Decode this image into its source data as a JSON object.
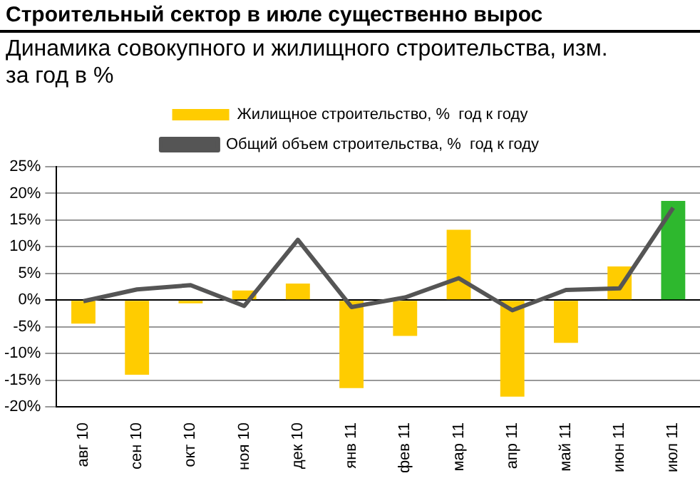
{
  "chart_data": {
    "type": "bar",
    "title": "Строительный сектор в июле существенно вырос",
    "subtitle": "Динамика совокупного и жилищного строительства, изм. за год в %",
    "categories": [
      "авг 10",
      "сен 10",
      "окт 10",
      "ноя 10",
      "дек 10",
      "янв 11",
      "фев 11",
      "мар 11",
      "апр 11",
      "май 11",
      "июн 11",
      "июл 11"
    ],
    "series": [
      {
        "name": "Жилищное строительство, %  год к году",
        "color": "#ffcc00",
        "colors": [
          "#ffcc00",
          "#ffcc00",
          "#ffcc00",
          "#ffcc00",
          "#ffcc00",
          "#ffcc00",
          "#ffcc00",
          "#ffcc00",
          "#ffcc00",
          "#ffcc00",
          "#ffcc00",
          "#2eb82e"
        ],
        "values": [
          -4.4,
          -14.0,
          -0.6,
          1.8,
          3.1,
          -16.5,
          -6.7,
          13.2,
          -18.1,
          -8.0,
          6.3,
          18.6
        ]
      },
      {
        "name": "Общий объем строительства, %  год к году",
        "type": "line",
        "color": "#555555",
        "values": [
          -0.2,
          2.0,
          2.8,
          -1.1,
          11.3,
          -1.3,
          0.5,
          4.1,
          -1.9,
          1.9,
          2.2,
          17.3
        ]
      }
    ],
    "ylim": [
      -20,
      25
    ],
    "yticks": [
      {
        "value": -20,
        "label": "-20%"
      },
      {
        "value": -15,
        "label": "-15%"
      },
      {
        "value": -10,
        "label": "-10%"
      },
      {
        "value": -5,
        "label": "-5%"
      },
      {
        "value": 0,
        "label": "0%"
      },
      {
        "value": 5,
        "label": "5%"
      },
      {
        "value": 10,
        "label": "10%"
      },
      {
        "value": 15,
        "label": "15%"
      },
      {
        "value": 20,
        "label": "20%"
      },
      {
        "value": 25,
        "label": "25%"
      }
    ],
    "grid": "y",
    "legend": "top",
    "marker": "none",
    "line_style": "solid"
  }
}
